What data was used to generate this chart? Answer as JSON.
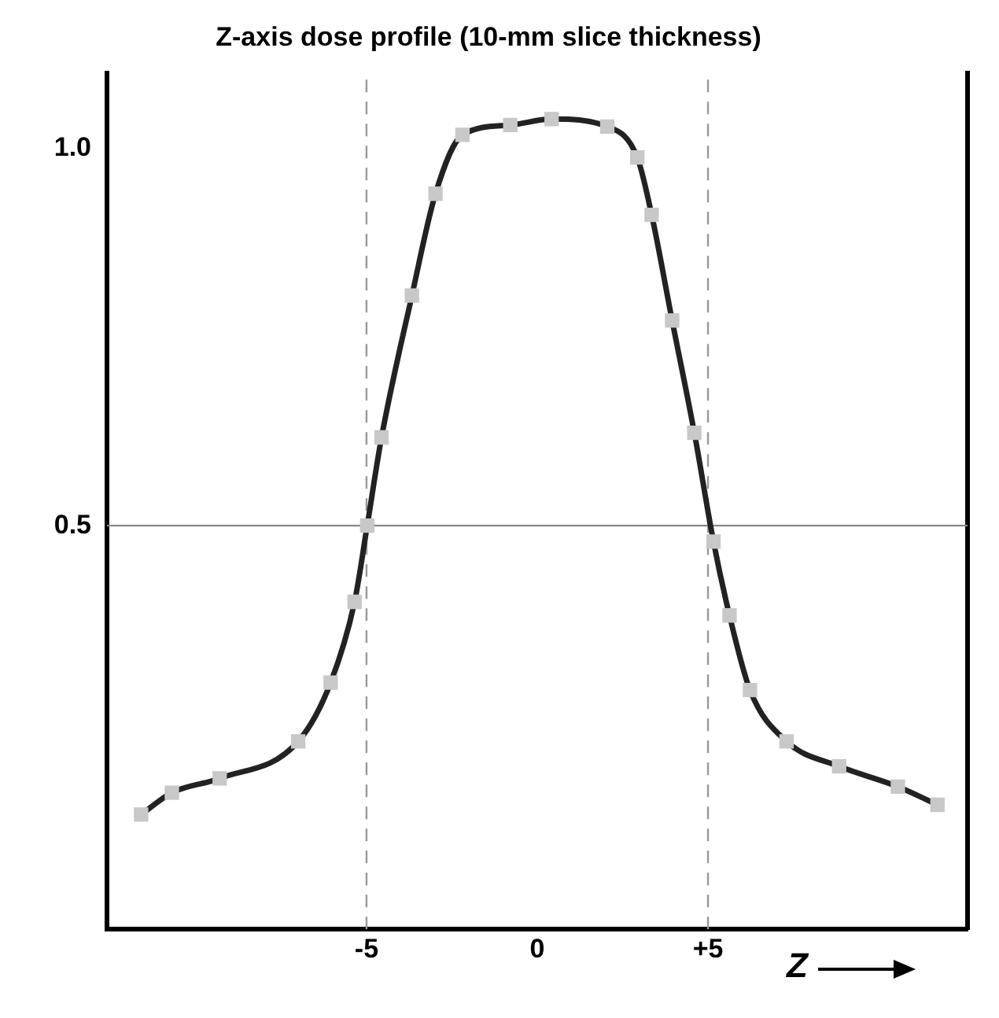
{
  "chart_data": {
    "type": "line",
    "title": "Z-axis dose profile (10-mm slice thickness)",
    "xlabel": "Z",
    "series": [
      {
        "color": "#222222",
        "x": [
          -11.6,
          -10.7,
          -9.3,
          -7.0,
          -6.05,
          -5.35,
          -4.98,
          -4.56,
          -3.67,
          -2.98,
          -2.19,
          -0.79,
          0.42,
          2.05,
          2.93,
          3.35,
          3.95,
          4.6,
          5.16,
          5.63,
          6.23,
          7.3,
          8.84,
          10.56,
          11.72
        ],
        "values": [
          0.117,
          0.146,
          0.165,
          0.214,
          0.292,
          0.399,
          0.5,
          0.617,
          0.805,
          0.94,
          1.018,
          1.031,
          1.039,
          1.029,
          0.988,
          0.912,
          0.772,
          0.623,
          0.479,
          0.381,
          0.282,
          0.214,
          0.181,
          0.154,
          0.13
        ]
      }
    ],
    "xlim": [
      -12.6,
      12.6
    ],
    "xticks": [
      -5,
      0,
      {
        "value": 5,
        "label": "+5"
      }
    ],
    "ylim": [
      -0.035,
      1.1
    ],
    "yticks": [
      0.5,
      {
        "value": 1,
        "label": "1.0"
      }
    ],
    "ref_lines": [
      {
        "axis": "y",
        "value": 0.5,
        "color": "#888888",
        "line_style": "solid"
      },
      {
        "axis": "x",
        "value": -5,
        "color": "#999999",
        "line_style": "dashed"
      },
      {
        "axis": "x",
        "value": 5,
        "color": "#999999",
        "line_style": "dashed"
      }
    ],
    "grid": false,
    "legend": false,
    "marker": "square",
    "line_style": "solid"
  }
}
